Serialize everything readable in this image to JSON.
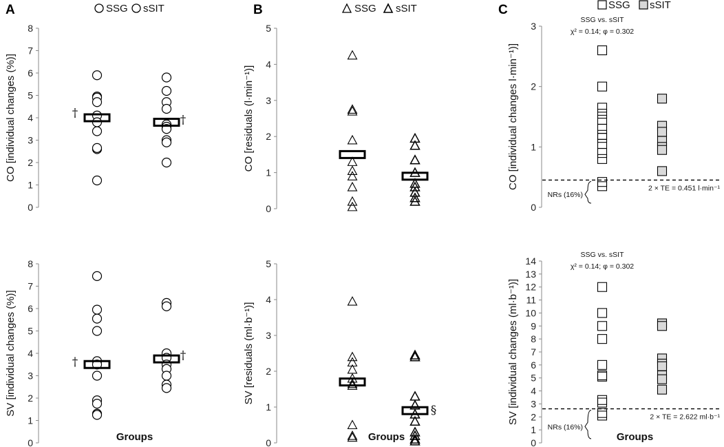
{
  "panel_labels": [
    "A",
    "B",
    "C"
  ],
  "legend": {
    "A": [
      "SSG",
      "sSIT"
    ],
    "B": [
      "SSG",
      "sSIT"
    ],
    "C": [
      "SSG",
      "sSIT"
    ]
  },
  "colors": {
    "marker": "#000000",
    "ssit_fill_c": "#d9d9d9",
    "dash": "#000000"
  },
  "chart_data": [
    {
      "id": "A_top",
      "panel": "A",
      "type": "scatter",
      "marker": "circle",
      "ylabel": "CO [individual changes (%)]",
      "xlabel": "",
      "ylim": [
        0,
        8
      ],
      "yticks": [
        0,
        1,
        2,
        3,
        4,
        5,
        6,
        7,
        8
      ],
      "groups": [
        "SSG",
        "sSIT"
      ],
      "series": [
        {
          "name": "SSG",
          "values": [
            5.9,
            4.95,
            4.9,
            4.7,
            4.1,
            3.8,
            3.4,
            2.6,
            2.65,
            1.2
          ],
          "mean": 4.0
        },
        {
          "name": "sSIT",
          "values": [
            5.8,
            5.2,
            4.7,
            4.4,
            3.7,
            3.6,
            3.5,
            3.0,
            2.9,
            2.0
          ],
          "mean": 3.8
        }
      ],
      "annotations": [
        {
          "text": "†",
          "group": "SSG",
          "y": 4.2
        },
        {
          "text": "†",
          "group": "sSIT",
          "y": 3.9
        }
      ]
    },
    {
      "id": "A_bottom",
      "panel": "A",
      "type": "scatter",
      "marker": "circle",
      "ylabel": "SV [individual changes (%)]",
      "xlabel": "Groups",
      "ylim": [
        0,
        8
      ],
      "yticks": [
        0,
        1,
        2,
        3,
        4,
        5,
        6,
        7,
        8
      ],
      "groups": [
        "SSG",
        "sSIT"
      ],
      "series": [
        {
          "name": "SSG",
          "values": [
            7.45,
            5.95,
            5.55,
            5.0,
            3.65,
            3.5,
            3.0,
            1.9,
            1.75,
            1.3,
            1.25
          ],
          "mean": 3.5
        },
        {
          "name": "sSIT",
          "values": [
            6.25,
            6.1,
            4.0,
            3.8,
            3.5,
            3.3,
            3.0,
            2.6,
            2.45
          ],
          "mean": 3.75
        }
      ],
      "annotations": [
        {
          "text": "†",
          "group": "SSG",
          "y": 3.6
        },
        {
          "text": "†",
          "group": "sSIT",
          "y": 3.9
        }
      ]
    },
    {
      "id": "B_top",
      "panel": "B",
      "type": "scatter",
      "marker": "triangle",
      "ylabel": "CO [residuals (l·min⁻¹)]",
      "xlabel": "",
      "ylim": [
        0,
        5
      ],
      "yticks": [
        0,
        1,
        2,
        3,
        4,
        5
      ],
      "groups": [
        "SSG",
        "sSIT"
      ],
      "series": [
        {
          "name": "SSG",
          "values": [
            4.25,
            2.75,
            2.7,
            1.9,
            1.3,
            1.05,
            0.9,
            0.6,
            0.2,
            0.05
          ],
          "mean": 1.5
        },
        {
          "name": "sSIT",
          "values": [
            1.95,
            1.75,
            1.35,
            1.0,
            0.7,
            0.6,
            0.45,
            0.3,
            0.2
          ],
          "mean": 0.9
        }
      ],
      "annotations": []
    },
    {
      "id": "B_bottom",
      "panel": "B",
      "type": "scatter",
      "marker": "triangle",
      "ylabel": "SV [residuals (ml·b⁻¹)]",
      "xlabel": "Groups",
      "ylim": [
        0,
        5
      ],
      "yticks": [
        0,
        1,
        2,
        3,
        4,
        5
      ],
      "groups": [
        "SSG",
        "sSIT"
      ],
      "series": [
        {
          "name": "SSG",
          "values": [
            3.95,
            2.4,
            2.25,
            2.05,
            1.8,
            1.65,
            1.6,
            0.5,
            0.2,
            0.15
          ],
          "mean": 1.7
        },
        {
          "name": "sSIT",
          "values": [
            2.45,
            2.4,
            1.3,
            1.05,
            0.8,
            0.6,
            0.3,
            0.2,
            0.1,
            0.05
          ],
          "mean": 0.9
        }
      ],
      "annotations": [
        {
          "text": "§",
          "group": "sSIT",
          "y": 0.9
        }
      ]
    },
    {
      "id": "C_top",
      "panel": "C",
      "type": "scatter",
      "marker": "square",
      "ylabel": "CO [individual changes l·min⁻¹)]",
      "xlabel": "",
      "ylim": [
        0,
        3
      ],
      "yticks": [
        0,
        1,
        2,
        3
      ],
      "groups": [
        "SSG",
        "sSIT"
      ],
      "series": [
        {
          "name": "SSG",
          "values": [
            2.6,
            2.0,
            1.65,
            1.55,
            1.45,
            1.3,
            1.2,
            1.15,
            1.05,
            0.9,
            0.8,
            0.42,
            0.35
          ]
        },
        {
          "name": "sSIT",
          "values": [
            1.8,
            1.35,
            1.25,
            1.1,
            1.0,
            0.95,
            0.6
          ]
        }
      ],
      "threshold": {
        "value": 0.451,
        "label": "2 × TE = 0.451 l·min⁻¹"
      },
      "nr_label": "NRs (16%)",
      "stats": [
        "SSG vs. sSIT",
        "χ² = 0.14; φ = 0.302"
      ]
    },
    {
      "id": "C_bottom",
      "panel": "C",
      "type": "scatter",
      "marker": "square",
      "ylabel": "SV [individual changes (ml·b⁻¹)]",
      "xlabel": "Groups",
      "ylim": [
        0,
        14
      ],
      "yticks": [
        0,
        1,
        2,
        3,
        4,
        5,
        6,
        7,
        8,
        9,
        10,
        11,
        12,
        13,
        14
      ],
      "groups": [
        "SSG",
        "sSIT"
      ],
      "series": [
        {
          "name": "SSG",
          "values": [
            12.0,
            10.0,
            9.0,
            8.0,
            6.0,
            5.2,
            5.1,
            3.3,
            3.1,
            2.3,
            2.1
          ]
        },
        {
          "name": "sSIT",
          "values": [
            9.2,
            9.0,
            6.5,
            6.1,
            5.9,
            5.2,
            4.9,
            4.1
          ]
        }
      ],
      "threshold": {
        "value": 2.622,
        "label": "2 × TE = 2.622 ml·b⁻¹"
      },
      "nr_label": "NRs (16%)",
      "stats": [
        "SSG vs. sSIT",
        "χ² = 0.14; φ = 0.302"
      ]
    }
  ]
}
